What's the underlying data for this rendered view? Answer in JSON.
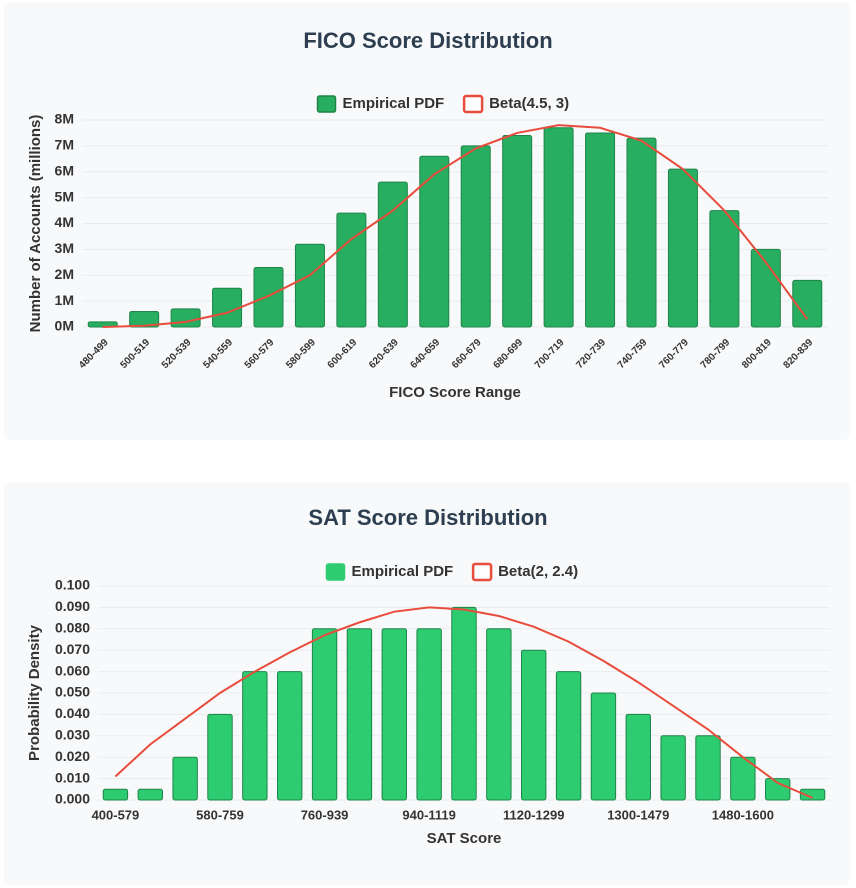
{
  "chart_data": [
    {
      "type": "bar",
      "title": "FICO Score Distribution",
      "x_label": "FICO Score Range",
      "y_label": "Number of Accounts (millions)",
      "categories": [
        "480-499",
        "500-519",
        "520-539",
        "540-559",
        "560-579",
        "580-599",
        "600-619",
        "620-639",
        "640-659",
        "660-679",
        "680-699",
        "700-719",
        "720-739",
        "740-759",
        "760-779",
        "780-799",
        "800-819",
        "820-839"
      ],
      "series": [
        {
          "name": "Empirical PDF",
          "color": "#27ae60",
          "values": [
            0.2,
            0.6,
            0.7,
            1.5,
            2.3,
            3.2,
            4.4,
            5.6,
            6.6,
            7.0,
            7.4,
            7.7,
            7.5,
            7.3,
            6.1,
            4.5,
            3.0,
            1.8
          ]
        },
        {
          "name": "Beta(4.5, 3)",
          "color": "#e74c3c",
          "type": "line",
          "values": [
            0.0,
            0.05,
            0.2,
            0.55,
            1.2,
            2.0,
            3.4,
            4.5,
            5.9,
            6.9,
            7.5,
            7.8,
            7.7,
            7.2,
            6.1,
            4.5,
            2.5,
            0.3
          ]
        }
      ],
      "ylim": [
        0,
        8
      ],
      "yticks": [
        {
          "value": 0,
          "label": "0M"
        },
        {
          "value": 1,
          "label": "1M"
        },
        {
          "value": 2,
          "label": "2M"
        },
        {
          "value": 3,
          "label": "3M"
        },
        {
          "value": 4,
          "label": "4M"
        },
        {
          "value": 5,
          "label": "5M"
        },
        {
          "value": 6,
          "label": "6M"
        },
        {
          "value": 7,
          "label": "7M"
        },
        {
          "value": 8,
          "label": "8M"
        }
      ],
      "grid": true,
      "legend": "top"
    },
    {
      "type": "bar",
      "title": "SAT Score Distribution",
      "x_label": "SAT Score",
      "y_label": "Probability Density",
      "categories": [
        "400-579",
        null,
        null,
        "580-759",
        null,
        null,
        "760-939",
        null,
        null,
        "940-1119",
        null,
        null,
        "1120-1299",
        null,
        null,
        "1300-1479",
        null,
        null,
        "1480-1600",
        null,
        null
      ],
      "series": [
        {
          "name": "Empirical PDF",
          "color": "#2ecc71",
          "values": [
            0.005,
            0.005,
            0.02,
            0.04,
            0.06,
            0.06,
            0.08,
            0.08,
            0.08,
            0.08,
            0.09,
            0.08,
            0.07,
            0.06,
            0.05,
            0.04,
            0.03,
            0.03,
            0.02,
            0.01,
            0.005
          ]
        },
        {
          "name": "Beta(2, 2.4)",
          "color": "#e74c3c",
          "type": "line",
          "values": [
            0.011,
            0.026,
            0.038,
            0.05,
            0.06,
            0.069,
            0.077,
            0.083,
            0.088,
            0.09,
            0.089,
            0.086,
            0.081,
            0.074,
            0.065,
            0.055,
            0.044,
            0.033,
            0.02,
            0.008,
            0.001
          ]
        }
      ],
      "ylim": [
        0,
        0.1
      ],
      "yticks": [
        {
          "value": 0,
          "label": "0.000"
        },
        {
          "value": 0.01,
          "label": "0.010"
        },
        {
          "value": 0.02,
          "label": "0.020"
        },
        {
          "value": 0.03,
          "label": "0.030"
        },
        {
          "value": 0.04,
          "label": "0.040"
        },
        {
          "value": 0.05,
          "label": "0.050"
        },
        {
          "value": 0.06,
          "label": "0.060"
        },
        {
          "value": 0.07,
          "label": "0.070"
        },
        {
          "value": 0.08,
          "label": "0.080"
        },
        {
          "value": 0.09,
          "label": "0.090"
        },
        {
          "value": 0.1,
          "label": "0.100"
        }
      ],
      "grid": true,
      "legend": "top"
    }
  ]
}
